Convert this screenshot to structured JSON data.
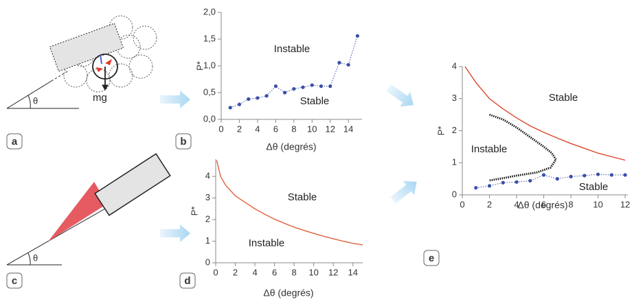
{
  "panel_a": {
    "label": "a",
    "force": "mg",
    "angle": "θ"
  },
  "panel_c": {
    "label": "c",
    "angle": "θ"
  },
  "chart_data": [
    {
      "type": "line",
      "panel": "b",
      "x": [
        1,
        2,
        3,
        4,
        5,
        6,
        7,
        8,
        9,
        10,
        11,
        12,
        13,
        14,
        15
      ],
      "xlim": [
        0,
        15.5
      ],
      "ylim": [
        0,
        2
      ],
      "xticks": [
        0,
        2,
        4,
        6,
        8,
        10,
        12,
        14
      ],
      "yticks": [
        {
          "value": 0,
          "label": "0,0"
        },
        {
          "value": 0.5,
          "label": "0,5"
        },
        {
          "value": 1,
          "label": "1,0"
        },
        {
          "value": 1.5,
          "label": "1,5"
        },
        {
          "value": 2,
          "label": "2,0"
        }
      ],
      "xlabel": "Δθ (degrés)",
      "ylabel": "P*",
      "annotations": [
        "Instable",
        "Stable"
      ],
      "series": [
        {
          "color": "#3a4fa8",
          "markers": true,
          "dash": "dotted",
          "values": [
            0.22,
            0.28,
            0.38,
            0.4,
            0.44,
            0.62,
            0.5,
            0.57,
            0.6,
            0.64,
            0.62,
            0.62,
            1.06,
            1.02,
            1.56
          ]
        }
      ]
    },
    {
      "type": "line",
      "panel": "d",
      "x": [
        0.1,
        0.5,
        1,
        2,
        3,
        4,
        5,
        6,
        7,
        8,
        9,
        10,
        11,
        12,
        13,
        14,
        15
      ],
      "xlim": [
        0,
        15
      ],
      "ylim": [
        0,
        4.8
      ],
      "xticks": [
        0,
        2,
        4,
        6,
        8,
        10,
        12,
        14
      ],
      "yticks": [
        0,
        1,
        2,
        3,
        4
      ],
      "xlabel": "Δθ (degrés)",
      "ylabel": "P*",
      "annotations": [
        "Stable",
        "Instable"
      ],
      "series": [
        {
          "color": "#e0603f",
          "markers": false,
          "dash": "solid",
          "values": [
            4.75,
            4.0,
            3.6,
            3.1,
            2.8,
            2.5,
            2.25,
            2.02,
            1.83,
            1.65,
            1.5,
            1.36,
            1.23,
            1.11,
            1.0,
            0.9,
            0.83
          ]
        }
      ]
    },
    {
      "type": "line",
      "panel": "e",
      "xlim": [
        0,
        12.2
      ],
      "ylim": [
        0,
        4
      ],
      "xticks": [
        0,
        2,
        4,
        6,
        8,
        10,
        12
      ],
      "yticks": [
        0,
        1,
        2,
        3,
        4
      ],
      "xlabel": "Δθ (degrés)",
      "ylabel": "P*",
      "annotations": [
        "Stable",
        "Instable",
        "Stable"
      ],
      "series": [
        {
          "color": "#d9462a",
          "markers": false,
          "dash": "solid",
          "x": [
            0.2,
            1,
            2,
            3,
            4,
            5,
            6,
            7,
            8,
            9,
            10,
            11,
            12
          ],
          "values": [
            4.0,
            3.5,
            3.0,
            2.68,
            2.4,
            2.15,
            1.95,
            1.77,
            1.6,
            1.45,
            1.3,
            1.19,
            1.08
          ]
        },
        {
          "color": "#111111",
          "markers": false,
          "dash": "dotted",
          "x": [
            2,
            3,
            4,
            5,
            6,
            6.6,
            6.9,
            6.5,
            5.5,
            4,
            3,
            2
          ],
          "values": [
            2.5,
            2.35,
            2.1,
            1.8,
            1.5,
            1.3,
            1.1,
            0.85,
            0.7,
            0.6,
            0.52,
            0.45
          ]
        },
        {
          "color": "#3a4fa8",
          "markers": true,
          "dash": "dotted",
          "x": [
            1,
            2,
            3,
            4,
            5,
            6,
            7,
            8,
            9,
            10,
            11,
            12
          ],
          "values": [
            0.22,
            0.28,
            0.38,
            0.4,
            0.44,
            0.62,
            0.5,
            0.57,
            0.6,
            0.64,
            0.62,
            0.62
          ]
        }
      ]
    }
  ]
}
